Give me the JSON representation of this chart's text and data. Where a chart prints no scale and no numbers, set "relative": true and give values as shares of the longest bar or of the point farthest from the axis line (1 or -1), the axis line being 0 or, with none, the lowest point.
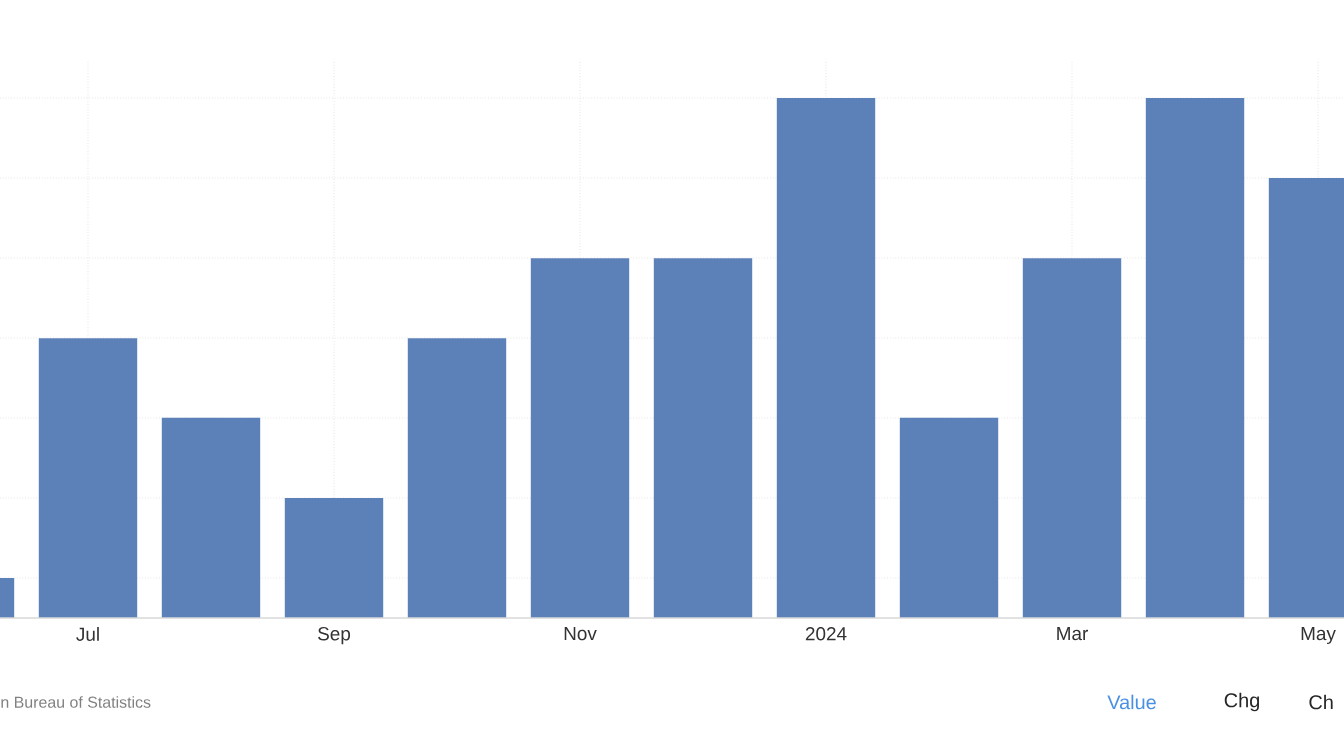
{
  "chart_data": {
    "type": "bar",
    "relative": true,
    "categories": [
      null,
      "Jul",
      null,
      "Sep",
      null,
      "Nov",
      null,
      "2024",
      null,
      "Mar",
      null,
      "May"
    ],
    "values": [
      0.077,
      0.538,
      0.385,
      0.231,
      0.538,
      0.692,
      0.692,
      1,
      0.385,
      0.692,
      1,
      0.846
    ],
    "color": "#5b81b8",
    "grid": true,
    "annotations": [
      "n Bureau of Statistics",
      "Value",
      "Chg",
      "Ch"
    ]
  }
}
